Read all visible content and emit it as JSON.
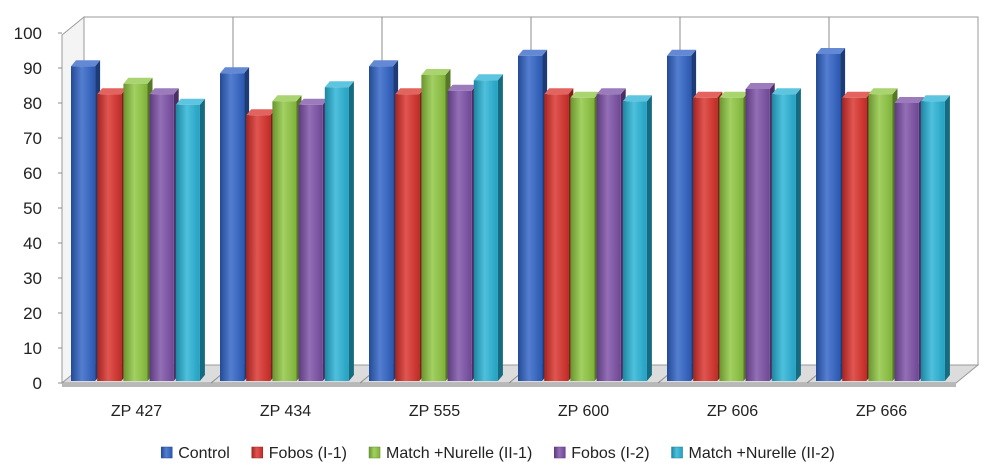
{
  "chart_data": {
    "type": "bar",
    "categories": [
      "ZP 427",
      "ZP 434",
      "ZP 555",
      "ZP 600",
      "ZP 606",
      "ZP 666"
    ],
    "series": [
      {
        "name": "Control",
        "color": "#2f62c6",
        "values": [
          90.5,
          88.5,
          90.5,
          93.5,
          93.5,
          94
        ]
      },
      {
        "name": "Fobos (I-1)",
        "color": "#d9302a",
        "values": [
          82.5,
          76.5,
          82.5,
          82.5,
          81.5,
          81.5
        ]
      },
      {
        "name": "Match +Nurelle (II-1)",
        "color": "#8dc63f",
        "values": [
          85.5,
          80.5,
          88,
          81.5,
          81.5,
          82.5
        ]
      },
      {
        "name": "Fobos (I-2)",
        "color": "#7b4fa6",
        "values": [
          82.5,
          79.5,
          83.5,
          82.5,
          84,
          80
        ]
      },
      {
        "name": "Match +Nurelle (II-2)",
        "color": "#27b2d6",
        "values": [
          79.5,
          84.5,
          86.5,
          80.5,
          82.5,
          80.5
        ]
      }
    ],
    "title": "",
    "xlabel": "",
    "ylabel": "",
    "ylim": [
      0,
      100
    ],
    "yticks": [
      0,
      10,
      20,
      30,
      40,
      50,
      60,
      70,
      80,
      90,
      100
    ],
    "grid": "vertical category dividers",
    "legend_position": "bottom",
    "style": "3d-clustered-bar"
  }
}
